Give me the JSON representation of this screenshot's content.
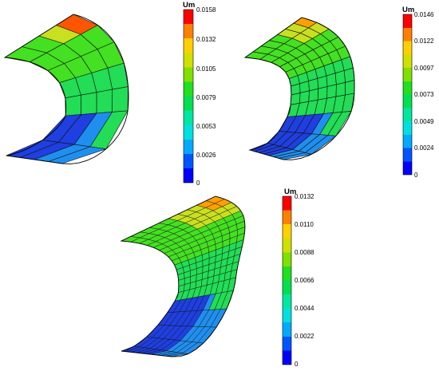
{
  "colormap": [
    "#0000ff",
    "#0055ff",
    "#00aaff",
    "#00e0e0",
    "#00e8a0",
    "#00e050",
    "#20e020",
    "#80e000",
    "#d0e000",
    "#ffd000",
    "#ff8000",
    "#ff0000"
  ],
  "surface_colors": {
    "blue_dark": "#1f3fe0",
    "blue_light": "#1f8fef",
    "green": "#22dd55",
    "green_bright": "#44e022",
    "yellow": "#c8e020",
    "orange": "#ffa000",
    "red_orange": "#ff5500"
  },
  "panels": [
    {
      "colorbar_title": "Um",
      "labels": [
        "0.0158",
        "0.0132",
        "0.0105",
        "0.0079",
        "0.0053",
        "0.0026",
        "0"
      ],
      "mesh": {
        "theta_divisions": 7,
        "length_divisions": 4
      }
    },
    {
      "colorbar_title": "Um",
      "labels": [
        "0.0146",
        "0.0122",
        "0.0097",
        "0.0073",
        "0.0049",
        "0.0024",
        "0"
      ],
      "mesh": {
        "theta_divisions": 12,
        "length_divisions": 7
      }
    },
    {
      "colorbar_title": "Um",
      "labels": [
        "0.0132",
        "0.0110",
        "0.0088",
        "0.0066",
        "0.0044",
        "0.0022",
        "0"
      ],
      "mesh": {
        "theta_divisions": 20,
        "length_divisions": 10
      }
    }
  ]
}
